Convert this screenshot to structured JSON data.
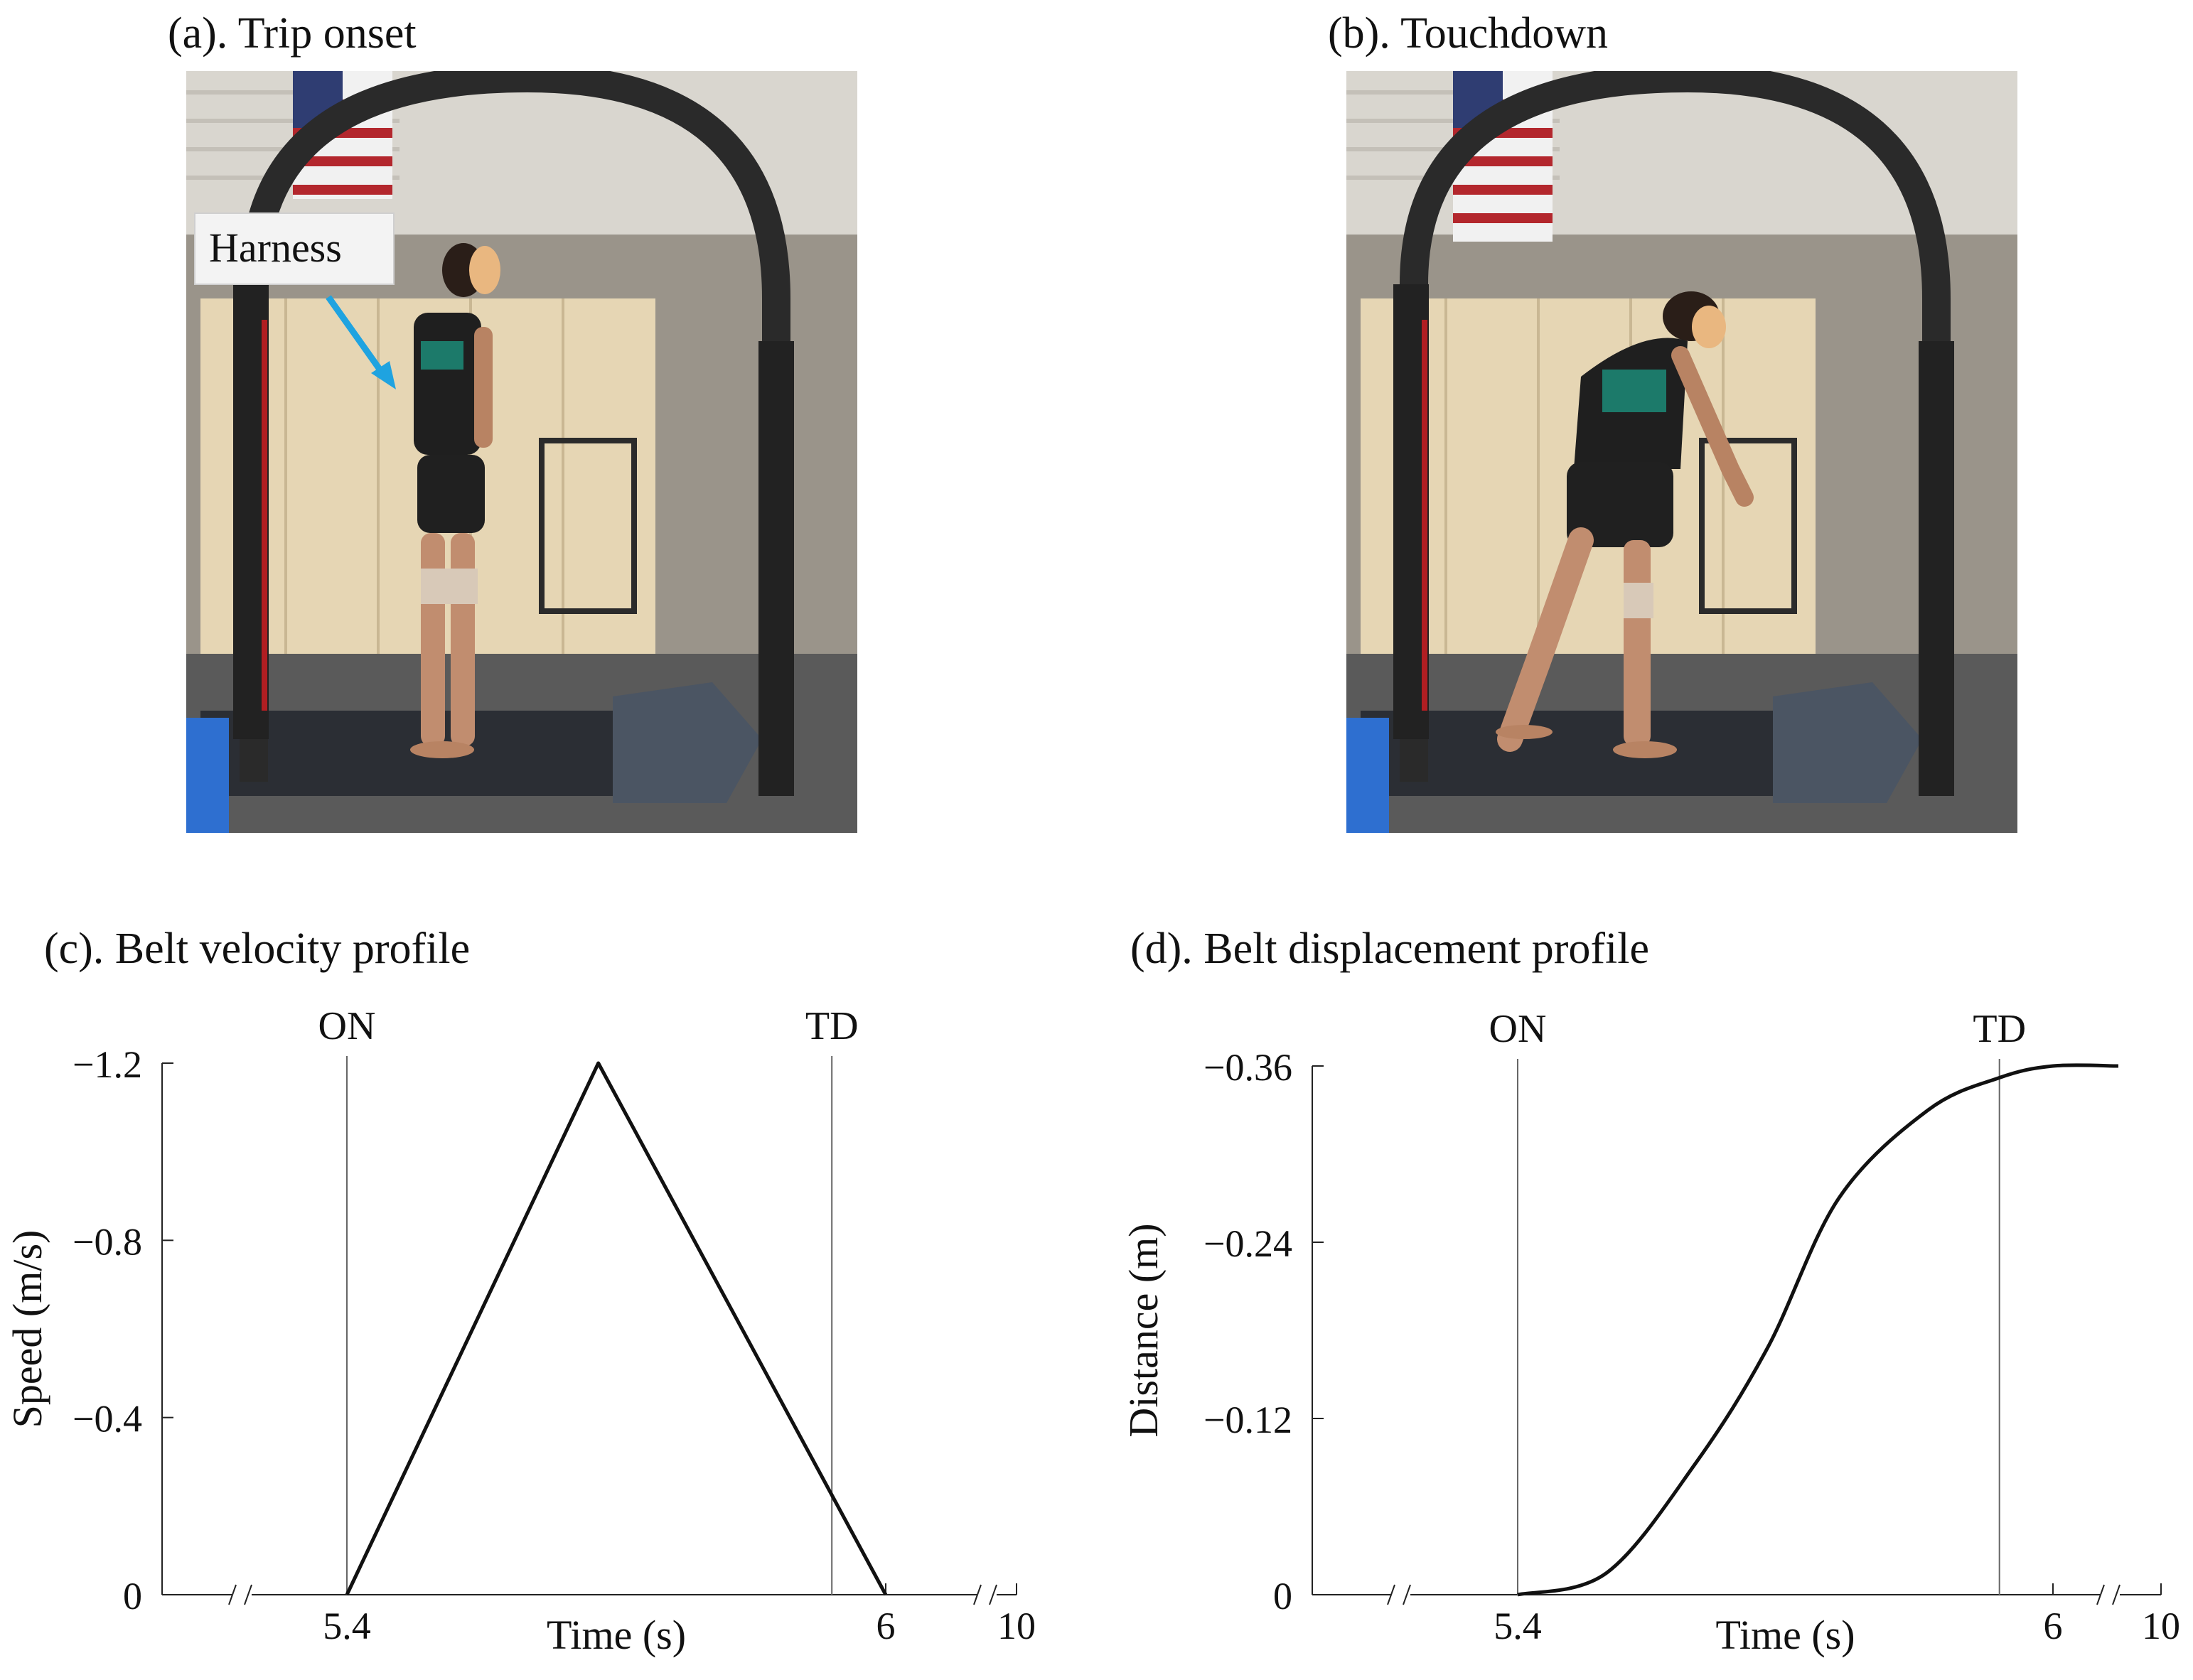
{
  "panels": {
    "a": {
      "title": "(a). Trip onset",
      "annotation": "Harness"
    },
    "b": {
      "title": "(b). Touchdown"
    },
    "c": {
      "title": "(c). Belt velocity profile"
    },
    "d": {
      "title": "(d). Belt displacement profile"
    }
  },
  "colors": {
    "annotation_arrow": "#1fa3e0",
    "curve": "#111111",
    "event_line": "#555555"
  },
  "chart_data": [
    {
      "type": "line",
      "title": "(c). Belt velocity profile",
      "xlabel": "Time (s)",
      "ylabel": "Speed (m/s)",
      "ylim": [
        0,
        -1.2
      ],
      "yticks": [
        0,
        -0.4,
        -0.8,
        -1.2
      ],
      "ytick_labels": [
        "0",
        "−0.4",
        "−0.8",
        "−1.2"
      ],
      "xticks": [
        5.4,
        6,
        10
      ],
      "xtick_labels": [
        "5.4",
        "6",
        "10"
      ],
      "axis_break": "between 6 and 10, and before 5.4",
      "events": [
        {
          "label": "ON",
          "x": 5.4
        },
        {
          "label": "TD",
          "x": 5.94
        }
      ],
      "series": [
        {
          "x": [
            5.4,
            5.68,
            6.0
          ],
          "y": [
            0,
            -1.2,
            0
          ]
        }
      ],
      "grid": false
    },
    {
      "type": "line",
      "title": "(d). Belt displacement profile",
      "xlabel": "Time (s)",
      "ylabel": "Distance (m)",
      "ylim": [
        0,
        -0.36
      ],
      "yticks": [
        0,
        -0.12,
        -0.24,
        -0.36
      ],
      "ytick_labels": [
        "0",
        "−0.12",
        "−0.24",
        "−0.36"
      ],
      "xticks": [
        5.4,
        6,
        10
      ],
      "xtick_labels": [
        "5.4",
        "6",
        "10"
      ],
      "axis_break": "between 6 and 10, and before 5.4",
      "events": [
        {
          "label": "ON",
          "x": 5.4
        },
        {
          "label": "TD",
          "x": 5.94
        }
      ],
      "series": [
        {
          "x": [
            5.4,
            5.5,
            5.6,
            5.68,
            5.76,
            5.86,
            5.94,
            6.0,
            10
          ],
          "y": [
            0,
            -0.015,
            -0.09,
            -0.168,
            -0.27,
            -0.33,
            -0.352,
            -0.36,
            -0.36
          ]
        }
      ],
      "grid": false
    }
  ]
}
